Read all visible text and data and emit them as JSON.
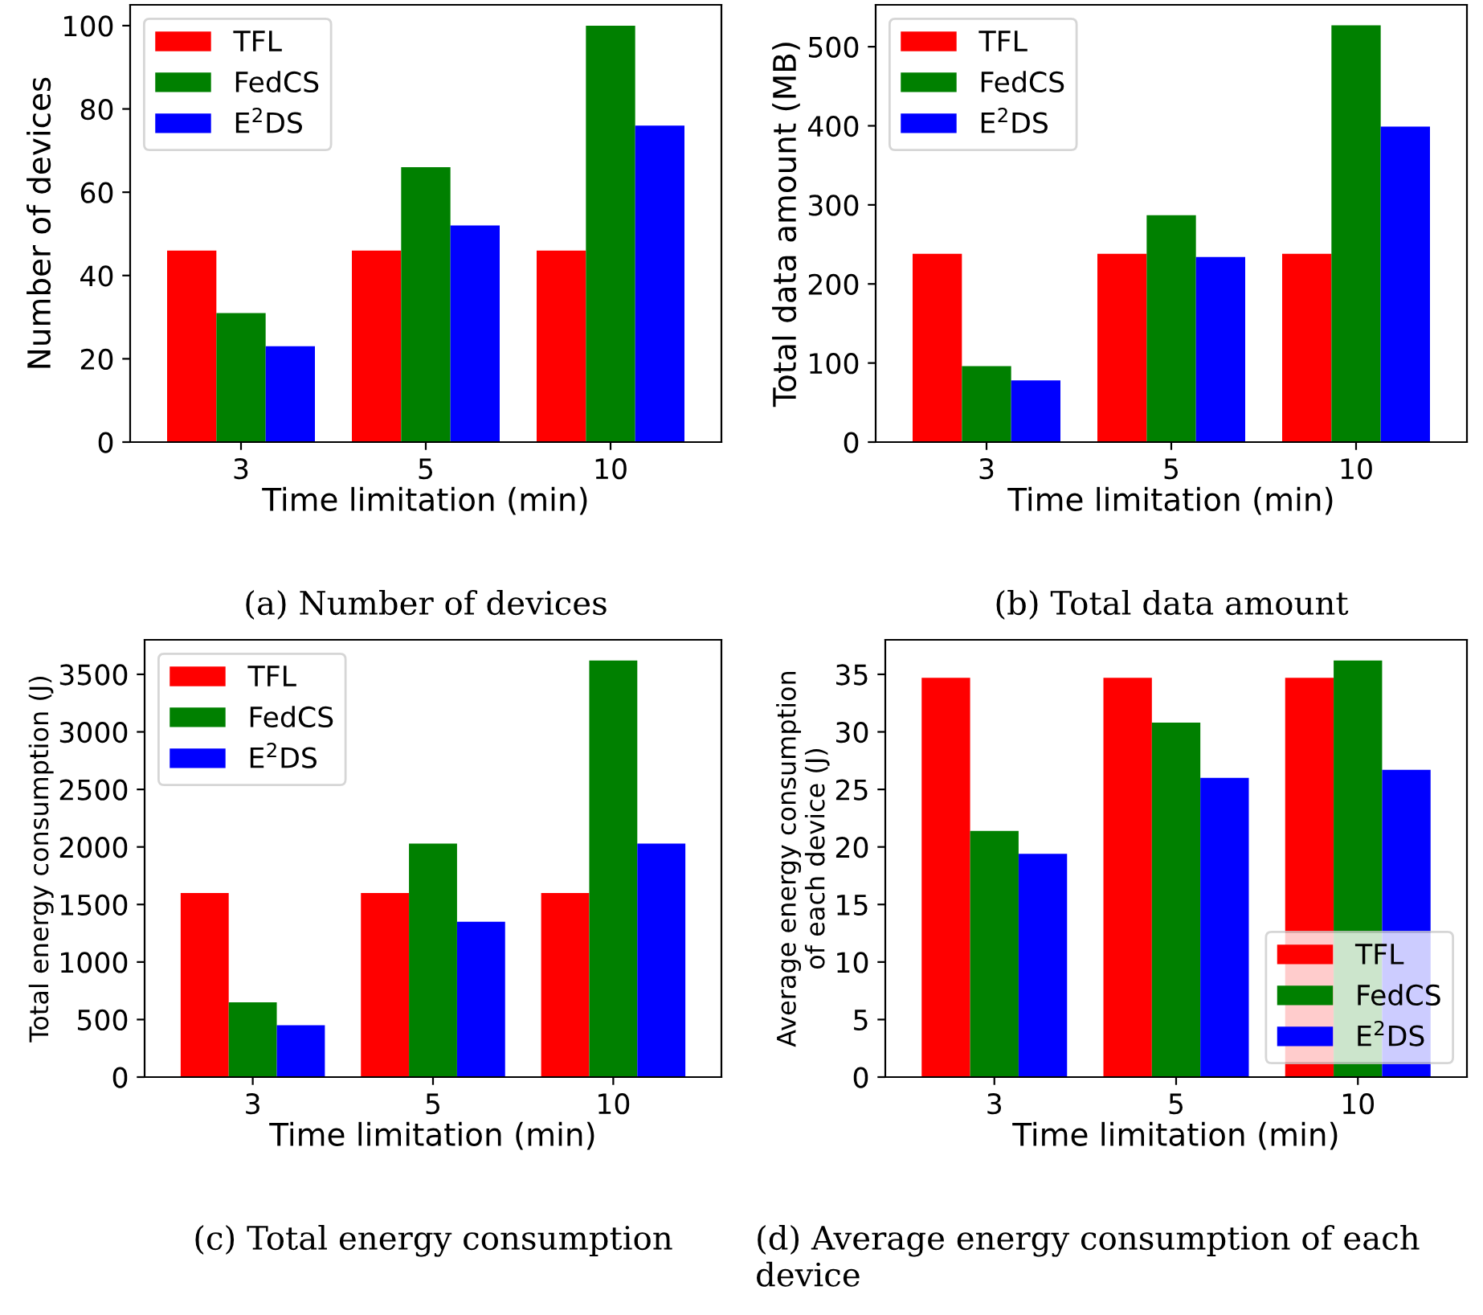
{
  "chart_data": [
    {
      "type": "bar",
      "categories": [
        "3",
        "5",
        "10"
      ],
      "xlabel": "Time limitation (min)",
      "ylabel": "Number of devices",
      "ylim": [
        0,
        105
      ],
      "yticks": [
        0,
        20,
        40,
        60,
        80,
        100
      ],
      "legend": "top left",
      "annotations": [
        "(a) Number of devices"
      ],
      "series": [
        {
          "name": "TFL",
          "color": "#ff0000",
          "values": [
            46,
            46,
            46
          ]
        },
        {
          "name": "FedCS",
          "color": "#008000",
          "values": [
            31,
            66,
            100
          ]
        },
        {
          "name": "E$^{2}$DS",
          "color": "#0000ff",
          "values": [
            23,
            52,
            76
          ]
        }
      ]
    },
    {
      "type": "bar",
      "categories": [
        "3",
        "5",
        "10"
      ],
      "xlabel": "Time limitation (min)",
      "ylabel": "Total data amount (MB)",
      "ylim": [
        0,
        553
      ],
      "yticks": [
        0,
        100,
        200,
        300,
        400,
        500
      ],
      "legend": "top left",
      "annotations": [
        "(b) Total data amount"
      ],
      "series": [
        {
          "name": "TFL",
          "color": "#ff0000",
          "values": [
            238,
            238,
            238
          ]
        },
        {
          "name": "FedCS",
          "color": "#008000",
          "values": [
            96,
            287,
            527
          ]
        },
        {
          "name": "E$^{2}$DS",
          "color": "#0000ff",
          "values": [
            78,
            234,
            399
          ]
        }
      ]
    },
    {
      "type": "bar",
      "categories": [
        "3",
        "5",
        "10"
      ],
      "xlabel": "Time limitation (min)",
      "ylabel": "Total energy consumption (J)",
      "ylim": [
        0,
        3800
      ],
      "yticks": [
        0,
        500,
        1000,
        1500,
        2000,
        2500,
        3000,
        3500
      ],
      "legend": "top left",
      "annotations": [
        "(c) Total energy consumption"
      ],
      "series": [
        {
          "name": "TFL",
          "color": "#ff0000",
          "values": [
            1600,
            1600,
            1600
          ]
        },
        {
          "name": "FedCS",
          "color": "#008000",
          "values": [
            650,
            2030,
            3620
          ]
        },
        {
          "name": "E$^{2}$DS",
          "color": "#0000ff",
          "values": [
            450,
            1350,
            2030
          ]
        }
      ]
    },
    {
      "type": "bar",
      "categories": [
        "3",
        "5",
        "10"
      ],
      "xlabel": "Time limitation (min)",
      "ylabel": "Average energy consumption\nof each device (J)",
      "ylim": [
        0,
        38
      ],
      "yticks": [
        0,
        5,
        10,
        15,
        20,
        25,
        30,
        35
      ],
      "legend": "bottom right",
      "annotations": [
        "(d) Average energy consumption of each device"
      ],
      "series": [
        {
          "name": "TFL",
          "color": "#ff0000",
          "values": [
            34.7,
            34.7,
            34.7
          ]
        },
        {
          "name": "FedCS",
          "color": "#008000",
          "values": [
            21.4,
            30.8,
            36.2
          ]
        },
        {
          "name": "E$^{2}$DS",
          "color": "#0000ff",
          "values": [
            19.4,
            26.0,
            26.7
          ]
        }
      ]
    }
  ]
}
